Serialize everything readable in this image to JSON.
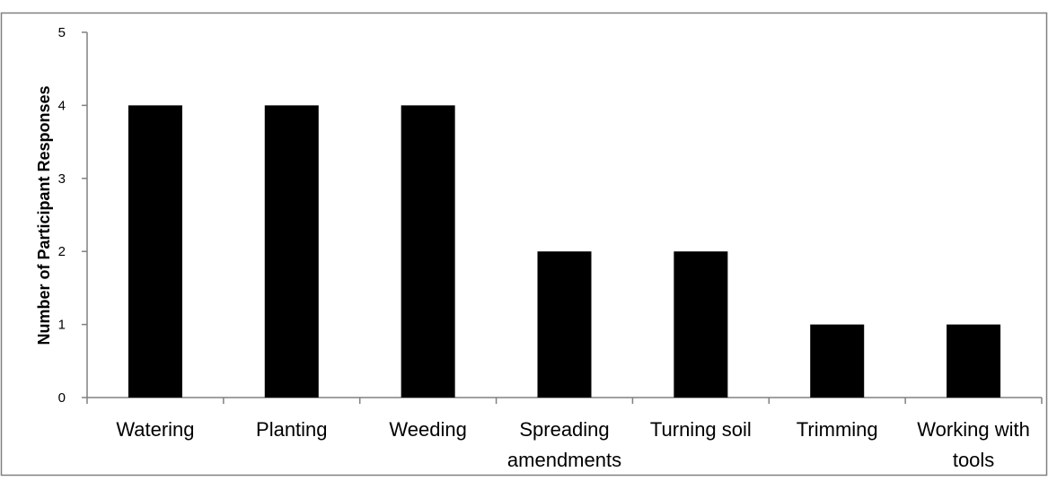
{
  "chart_data": {
    "type": "bar",
    "categories": [
      [
        "Watering"
      ],
      [
        "Planting"
      ],
      [
        "Weeding"
      ],
      [
        "Spreading",
        "amendments"
      ],
      [
        "Turning soil"
      ],
      [
        "Trimming"
      ],
      [
        "Working with",
        "tools"
      ]
    ],
    "values": [
      4,
      4,
      4,
      2,
      2,
      1,
      1
    ],
    "title": "",
    "xlabel": "",
    "ylabel": "Number of Participant Responses",
    "ylim": [
      0,
      5
    ],
    "yticks": [
      "0",
      "1",
      "2",
      "3",
      "4",
      "5"
    ],
    "grid": false,
    "legend": "none",
    "colors": {
      "bar": "#000000",
      "axis": "#808080",
      "frame": "#808080"
    }
  }
}
